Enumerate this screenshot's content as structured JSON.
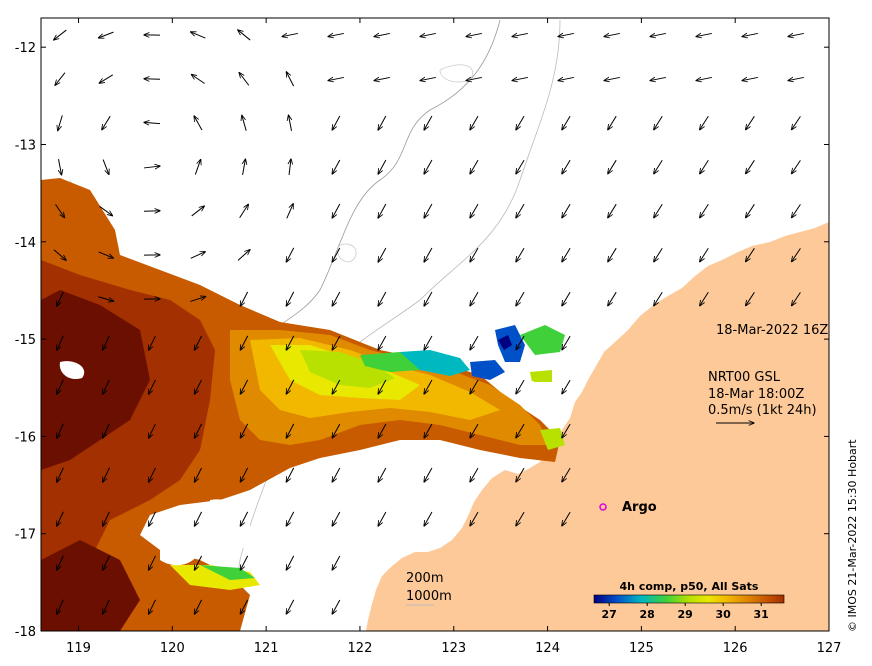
{
  "map": {
    "lon_range": [
      118.6,
      127.0
    ],
    "lat_range": [
      -18.0,
      -11.7
    ],
    "lon_ticks": [
      "119",
      "120",
      "121",
      "122",
      "123",
      "124",
      "125",
      "126",
      "127"
    ],
    "lat_ticks": [
      "-12",
      "-13",
      "-14",
      "-15",
      "-16",
      "-17",
      "-18"
    ],
    "land_color": "#fdc998",
    "sst_colors": [
      "#6b0f00",
      "#a33000",
      "#c85a00",
      "#e08a00",
      "#f2b800",
      "#e8e800",
      "#b8e000",
      "#3fd03a",
      "#00b8c0",
      "#0050c8",
      "#000080"
    ]
  },
  "annotations": {
    "sst_time": "18-Mar-2022 16Z",
    "current_source": "NRT00 GSL",
    "current_time": "18-Mar 18:00Z",
    "vector_scale": "0.5m/s (1kt 24h)",
    "argo_label": "Argo"
  },
  "bathymetry_legend": {
    "contour_200": "200m",
    "contour_1000": "1000m"
  },
  "colorbar": {
    "title": "4h comp, p50, All Sats",
    "tick_labels": [
      "27",
      "28",
      "29",
      "30",
      "31"
    ],
    "range": [
      26.6,
      31.6
    ]
  },
  "credit": "© IMOS 21-Mar-2022 15:30 Hobart"
}
